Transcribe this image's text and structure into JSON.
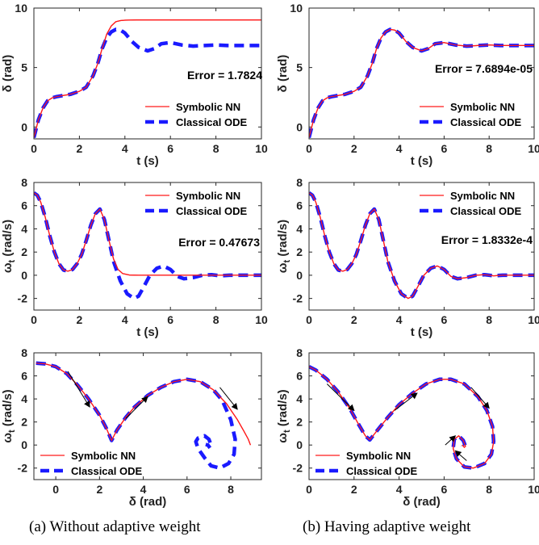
{
  "captions": [
    "(a) Without adaptive weight",
    "(b) Having adaptive weight"
  ],
  "colors": {
    "symbolic": "#ff1a1a",
    "classical": "#1a1aff"
  },
  "chart_data": [
    {
      "id": "a-delta",
      "type": "line",
      "xlabel": "t (s)",
      "ylabel": "δ (rad)",
      "xlim": [
        0,
        10
      ],
      "ylim": [
        -1,
        10
      ],
      "xticks": [
        0,
        2,
        4,
        6,
        8,
        10
      ],
      "yticks": [
        0,
        5,
        10
      ],
      "annotation": "Error = 1.7824",
      "legend": "bottom-right",
      "series": [
        {
          "name": "Symbolic NN",
          "style": "solid",
          "x": [
            0,
            0.2,
            0.4,
            0.6,
            0.8,
            1.0,
            1.3,
            1.6,
            2.0,
            2.3,
            2.6,
            2.8,
            3.0,
            3.2,
            3.4,
            3.6,
            3.8,
            4.0,
            4.5,
            5,
            6,
            7,
            8,
            9,
            10
          ],
          "y": [
            -0.9,
            0.6,
            1.6,
            2.2,
            2.45,
            2.55,
            2.65,
            2.75,
            3.0,
            3.35,
            4.3,
            5.3,
            6.6,
            7.8,
            8.5,
            8.85,
            8.95,
            8.98,
            9,
            9,
            9,
            9,
            9,
            9,
            9
          ]
        },
        {
          "name": "Classical ODE",
          "style": "dashed",
          "x": [
            0,
            0.2,
            0.4,
            0.6,
            0.8,
            1.0,
            1.3,
            1.6,
            2.0,
            2.3,
            2.6,
            2.8,
            3.0,
            3.2,
            3.4,
            3.6,
            3.8,
            4.0,
            4.3,
            4.6,
            5.0,
            5.3,
            5.6,
            6.0,
            6.5,
            7.0,
            7.5,
            8.0,
            8.5,
            9.0,
            9.5,
            10
          ],
          "y": [
            -0.9,
            0.6,
            1.6,
            2.2,
            2.45,
            2.55,
            2.65,
            2.75,
            3.0,
            3.35,
            4.3,
            5.3,
            6.6,
            7.5,
            8.0,
            8.2,
            8.15,
            7.9,
            7.2,
            6.7,
            6.4,
            6.6,
            7.0,
            7.1,
            6.9,
            6.8,
            6.85,
            6.9,
            6.85,
            6.85,
            6.85,
            6.85
          ]
        }
      ]
    },
    {
      "id": "b-delta",
      "type": "line",
      "xlabel": "t (s)",
      "ylabel": "δ (rad)",
      "xlim": [
        0,
        10
      ],
      "ylim": [
        -1,
        10
      ],
      "xticks": [
        0,
        2,
        4,
        6,
        8,
        10
      ],
      "yticks": [
        0,
        5,
        10
      ],
      "annotation": "Error = 7.6894e-05",
      "legend": "bottom-right",
      "series": [
        {
          "name": "Symbolic NN",
          "style": "solid",
          "x": [
            0,
            0.2,
            0.4,
            0.6,
            0.8,
            1.0,
            1.3,
            1.6,
            2.0,
            2.3,
            2.6,
            2.8,
            3.0,
            3.2,
            3.4,
            3.6,
            3.8,
            4.0,
            4.3,
            4.6,
            5.0,
            5.3,
            5.6,
            6.0,
            6.5,
            7.0,
            7.5,
            8.0,
            8.5,
            9.0,
            9.5,
            10
          ],
          "y": [
            -0.9,
            0.6,
            1.6,
            2.2,
            2.45,
            2.55,
            2.65,
            2.75,
            3.0,
            3.35,
            4.3,
            5.3,
            6.6,
            7.5,
            8.0,
            8.2,
            8.15,
            7.9,
            7.2,
            6.7,
            6.4,
            6.6,
            7.0,
            7.1,
            6.9,
            6.8,
            6.85,
            6.9,
            6.85,
            6.85,
            6.85,
            6.85
          ]
        },
        {
          "name": "Classical ODE",
          "style": "dashed",
          "x": [
            0,
            0.2,
            0.4,
            0.6,
            0.8,
            1.0,
            1.3,
            1.6,
            2.0,
            2.3,
            2.6,
            2.8,
            3.0,
            3.2,
            3.4,
            3.6,
            3.8,
            4.0,
            4.3,
            4.6,
            5.0,
            5.3,
            5.6,
            6.0,
            6.5,
            7.0,
            7.5,
            8.0,
            8.5,
            9.0,
            9.5,
            10
          ],
          "y": [
            -0.9,
            0.6,
            1.6,
            2.2,
            2.45,
            2.55,
            2.65,
            2.75,
            3.0,
            3.35,
            4.3,
            5.3,
            6.6,
            7.5,
            8.0,
            8.2,
            8.15,
            7.9,
            7.2,
            6.7,
            6.4,
            6.6,
            7.0,
            7.1,
            6.9,
            6.8,
            6.85,
            6.9,
            6.85,
            6.85,
            6.85,
            6.85
          ]
        }
      ]
    },
    {
      "id": "a-omega",
      "type": "line",
      "xlabel": "t (s)",
      "ylabel": "ω_t (rad/s)",
      "xlim": [
        0,
        10
      ],
      "ylim": [
        -3,
        8
      ],
      "xticks": [
        0,
        2,
        4,
        6,
        8,
        10
      ],
      "yticks": [
        -2,
        0,
        2,
        4,
        6,
        8
      ],
      "annotation": "Error = 0.47673",
      "legend": "top-right",
      "series": [
        {
          "name": "Symbolic NN",
          "style": "solid",
          "x": [
            0,
            0.15,
            0.3,
            0.5,
            0.7,
            0.9,
            1.1,
            1.3,
            1.5,
            1.7,
            1.9,
            2.1,
            2.3,
            2.5,
            2.7,
            2.9,
            3.1,
            3.3,
            3.5,
            3.7,
            3.9,
            4.2,
            4.6,
            5,
            6,
            7,
            8,
            9,
            10
          ],
          "y": [
            7.1,
            6.9,
            6.3,
            5,
            3.4,
            2,
            1,
            0.45,
            0.35,
            0.5,
            1,
            1.8,
            3,
            4.3,
            5.3,
            5.7,
            4.8,
            3,
            1.4,
            0.5,
            0.15,
            0.02,
            0,
            0,
            0,
            0,
            0,
            0,
            0
          ]
        },
        {
          "name": "Classical ODE",
          "style": "dashed",
          "x": [
            0,
            0.15,
            0.3,
            0.5,
            0.7,
            0.9,
            1.1,
            1.3,
            1.5,
            1.7,
            1.9,
            2.1,
            2.3,
            2.5,
            2.7,
            2.9,
            3.1,
            3.3,
            3.5,
            3.8,
            4.1,
            4.4,
            4.6,
            4.8,
            5.1,
            5.4,
            5.7,
            6.0,
            6.3,
            6.6,
            7.0,
            7.4,
            7.8,
            8.2,
            8.6,
            9.0,
            9.5,
            10
          ],
          "y": [
            7.1,
            6.9,
            6.3,
            5,
            3.4,
            2,
            1,
            0.45,
            0.35,
            0.5,
            1,
            1.8,
            3,
            4.3,
            5.3,
            5.7,
            4.8,
            3,
            1.2,
            -0.5,
            -1.6,
            -2,
            -1.8,
            -1.1,
            0,
            0.6,
            0.8,
            0.5,
            -0.1,
            -0.3,
            -0.2,
            0,
            0.05,
            -0.05,
            0,
            0,
            0,
            0
          ]
        }
      ]
    },
    {
      "id": "b-omega",
      "type": "line",
      "xlabel": "t (s)",
      "ylabel": "ω_t (rad/s)",
      "xlim": [
        0,
        10
      ],
      "ylim": [
        -3,
        8
      ],
      "xticks": [
        0,
        2,
        4,
        6,
        8,
        10
      ],
      "yticks": [
        -2,
        0,
        2,
        4,
        6,
        8
      ],
      "annotation": "Error = 1.8332e-4",
      "legend": "top-right",
      "series": [
        {
          "name": "Symbolic NN",
          "style": "solid",
          "x": [
            0,
            0.15,
            0.3,
            0.5,
            0.7,
            0.9,
            1.1,
            1.3,
            1.5,
            1.7,
            1.9,
            2.1,
            2.3,
            2.5,
            2.7,
            2.9,
            3.1,
            3.3,
            3.5,
            3.8,
            4.1,
            4.4,
            4.6,
            4.8,
            5.1,
            5.4,
            5.7,
            6.0,
            6.3,
            6.6,
            7.0,
            7.4,
            7.8,
            8.2,
            8.6,
            9.0,
            9.5,
            10
          ],
          "y": [
            7.1,
            6.9,
            6.3,
            5,
            3.4,
            2,
            1,
            0.45,
            0.35,
            0.5,
            1,
            1.8,
            3,
            4.3,
            5.3,
            5.7,
            4.8,
            3,
            1.2,
            -0.5,
            -1.6,
            -2,
            -1.8,
            -1.1,
            0,
            0.6,
            0.8,
            0.5,
            -0.1,
            -0.3,
            -0.2,
            0,
            0.05,
            -0.05,
            0,
            0,
            0,
            0
          ]
        },
        {
          "name": "Classical ODE",
          "style": "dashed",
          "x": [
            0,
            0.15,
            0.3,
            0.5,
            0.7,
            0.9,
            1.1,
            1.3,
            1.5,
            1.7,
            1.9,
            2.1,
            2.3,
            2.5,
            2.7,
            2.9,
            3.1,
            3.3,
            3.5,
            3.8,
            4.1,
            4.4,
            4.6,
            4.8,
            5.1,
            5.4,
            5.7,
            6.0,
            6.3,
            6.6,
            7.0,
            7.4,
            7.8,
            8.2,
            8.6,
            9.0,
            9.5,
            10
          ],
          "y": [
            7.1,
            6.9,
            6.3,
            5,
            3.4,
            2,
            1,
            0.45,
            0.35,
            0.5,
            1,
            1.8,
            3,
            4.3,
            5.3,
            5.7,
            4.8,
            3,
            1.2,
            -0.5,
            -1.6,
            -2,
            -1.8,
            -1.1,
            0,
            0.6,
            0.8,
            0.5,
            -0.1,
            -0.3,
            -0.2,
            0,
            0.05,
            -0.05,
            0,
            0,
            0,
            0
          ]
        }
      ]
    },
    {
      "id": "a-phase",
      "type": "line",
      "xlabel": "δ (rad)",
      "ylabel": "ω_t (rad/s)",
      "xlim": [
        -1,
        9.4
      ],
      "ylim": [
        -3,
        8
      ],
      "xticks": [
        0,
        2,
        4,
        6,
        8
      ],
      "yticks": [
        -2,
        0,
        2,
        4,
        6,
        8
      ],
      "legend": "bottom-left",
      "series": [
        {
          "name": "Symbolic NN",
          "style": "solid",
          "x": [
            -0.9,
            -0.5,
            0,
            0.5,
            1,
            1.5,
            2,
            2.3,
            2.55,
            2.8,
            3.2,
            3.6,
            4.2,
            4.8,
            5.4,
            6,
            6.6,
            7.2,
            7.8,
            8.3,
            8.6,
            8.8,
            8.9
          ],
          "y": [
            7.1,
            7.05,
            6.8,
            6.2,
            5.2,
            4,
            2.6,
            1.5,
            0.4,
            1.3,
            2.4,
            3.3,
            4.3,
            5,
            5.5,
            5.7,
            5.5,
            4.8,
            3.6,
            2.2,
            1.2,
            0.5,
            0
          ]
        },
        {
          "name": "Classical ODE",
          "style": "dashed",
          "x": [
            -0.9,
            -0.5,
            0,
            0.5,
            1,
            1.5,
            2,
            2.3,
            2.55,
            2.8,
            3.2,
            3.6,
            4.2,
            4.8,
            5.4,
            6,
            6.6,
            7.2,
            7.6,
            8.0,
            8.2,
            8.15,
            7.9,
            7.5,
            7.1,
            6.8,
            6.5,
            6.4,
            6.5,
            6.8,
            7.0,
            7.1,
            7.05,
            6.95,
            6.85
          ],
          "y": [
            7.1,
            7.05,
            6.8,
            6.2,
            5.2,
            4,
            2.6,
            1.5,
            0.4,
            1.3,
            2.4,
            3.3,
            4.3,
            5,
            5.5,
            5.7,
            5.5,
            4.8,
            3.9,
            2.2,
            0.5,
            -0.8,
            -1.6,
            -2,
            -1.8,
            -1.1,
            -0.3,
            0.3,
            0.6,
            0.8,
            0.5,
            0,
            -0.25,
            0,
            0.05
          ]
        }
      ]
    },
    {
      "id": "b-phase",
      "type": "line",
      "xlabel": "δ (rad)",
      "ylabel": "ω_t (rad/s)",
      "xlim": [
        0,
        10
      ],
      "ylim": [
        -3,
        8
      ],
      "xticks": [
        0,
        2,
        4,
        6,
        8,
        10
      ],
      "yticks": [
        -2,
        0,
        2,
        4,
        6,
        8
      ],
      "legend": "bottom-left",
      "series": [
        {
          "name": "Symbolic NN",
          "style": "solid",
          "x": [
            0,
            0.3,
            0.8,
            1.3,
            1.8,
            2.2,
            2.5,
            2.7,
            3,
            3.5,
            4,
            4.6,
            5.2,
            5.8,
            6.3,
            6.9,
            7.5,
            7.9,
            8.15,
            8.2,
            8.1,
            7.8,
            7.3,
            6.9,
            6.55,
            6.4,
            6.45,
            6.65,
            6.85,
            6.95,
            6.9,
            6.8
          ],
          "y": [
            6.8,
            6.5,
            5.7,
            4.6,
            3.2,
            1.8,
            0.8,
            0.45,
            1.2,
            2.4,
            3.5,
            4.5,
            5.3,
            5.7,
            5.7,
            5.3,
            4.2,
            3,
            1.6,
            0.3,
            -0.8,
            -1.6,
            -2,
            -1.9,
            -1.2,
            -0.3,
            0.5,
            0.8,
            0.4,
            -0.1,
            -0.2,
            0
          ]
        },
        {
          "name": "Classical ODE",
          "style": "dashed",
          "x": [
            0,
            0.3,
            0.8,
            1.3,
            1.8,
            2.2,
            2.5,
            2.7,
            3,
            3.5,
            4,
            4.6,
            5.2,
            5.8,
            6.3,
            6.9,
            7.5,
            7.9,
            8.15,
            8.2,
            8.1,
            7.8,
            7.3,
            6.9,
            6.55,
            6.4,
            6.45,
            6.65,
            6.85,
            6.95,
            6.9,
            6.8
          ],
          "y": [
            6.8,
            6.5,
            5.7,
            4.6,
            3.2,
            1.8,
            0.8,
            0.45,
            1.2,
            2.4,
            3.5,
            4.5,
            5.3,
            5.7,
            5.7,
            5.3,
            4.2,
            3,
            1.6,
            0.3,
            -0.8,
            -1.6,
            -2,
            -1.9,
            -1.2,
            -0.3,
            0.5,
            0.8,
            0.4,
            -0.1,
            -0.2,
            0
          ]
        }
      ]
    }
  ]
}
